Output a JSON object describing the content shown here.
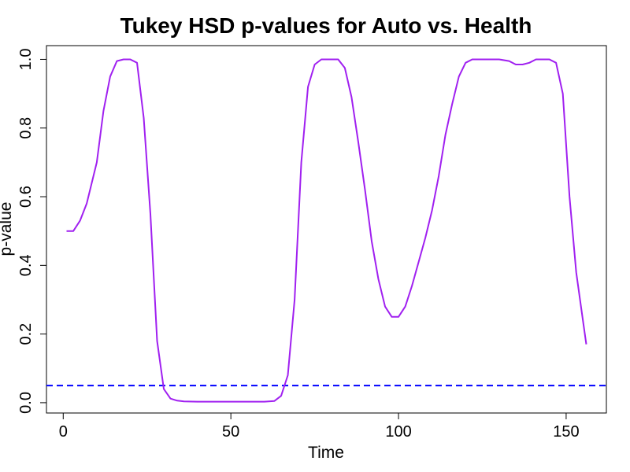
{
  "chart_data": {
    "type": "line",
    "title": "Tukey HSD p-values for Auto vs. Health",
    "xlabel": "Time",
    "ylabel": "p-value",
    "xlim": [
      -5,
      162
    ],
    "ylim": [
      -0.03,
      1.04
    ],
    "xticks": [
      0,
      50,
      100,
      150
    ],
    "yticks": [
      0.0,
      0.2,
      0.4,
      0.6,
      0.8,
      1.0
    ],
    "xtick_labels": [
      "0",
      "50",
      "100",
      "150"
    ],
    "ytick_labels": [
      "0.0",
      "0.2",
      "0.4",
      "0.6",
      "0.8",
      "1.0"
    ],
    "grid": false,
    "series": [
      {
        "color": "#a020f0",
        "x": [
          1,
          3,
          5,
          7,
          10,
          12,
          14,
          16,
          18,
          20,
          22,
          24,
          26,
          28,
          30,
          32,
          34,
          36,
          40,
          50,
          60,
          63,
          65,
          67,
          69,
          71,
          73,
          75,
          77,
          80,
          82,
          84,
          86,
          88,
          90,
          92,
          94,
          96,
          98,
          100,
          102,
          104,
          106,
          108,
          110,
          112,
          114,
          116,
          118,
          120,
          122,
          125,
          130,
          133,
          135,
          137,
          139,
          141,
          143,
          145,
          147,
          149,
          151,
          153,
          155,
          156
        ],
        "y": [
          0.5,
          0.5,
          0.53,
          0.58,
          0.7,
          0.85,
          0.95,
          0.995,
          1.0,
          1.0,
          0.99,
          0.83,
          0.55,
          0.18,
          0.04,
          0.012,
          0.006,
          0.004,
          0.003,
          0.003,
          0.003,
          0.005,
          0.02,
          0.08,
          0.3,
          0.7,
          0.92,
          0.985,
          1.0,
          1.0,
          1.0,
          0.975,
          0.89,
          0.76,
          0.62,
          0.47,
          0.36,
          0.28,
          0.25,
          0.25,
          0.28,
          0.34,
          0.41,
          0.48,
          0.56,
          0.66,
          0.78,
          0.87,
          0.95,
          0.99,
          1.0,
          1.0,
          1.0,
          0.995,
          0.985,
          0.985,
          0.99,
          1.0,
          1.0,
          1.0,
          0.99,
          0.9,
          0.6,
          0.38,
          0.24,
          0.17
        ]
      }
    ],
    "reference_line": {
      "y": 0.05,
      "color": "#0000ff",
      "style": "dashed"
    }
  }
}
